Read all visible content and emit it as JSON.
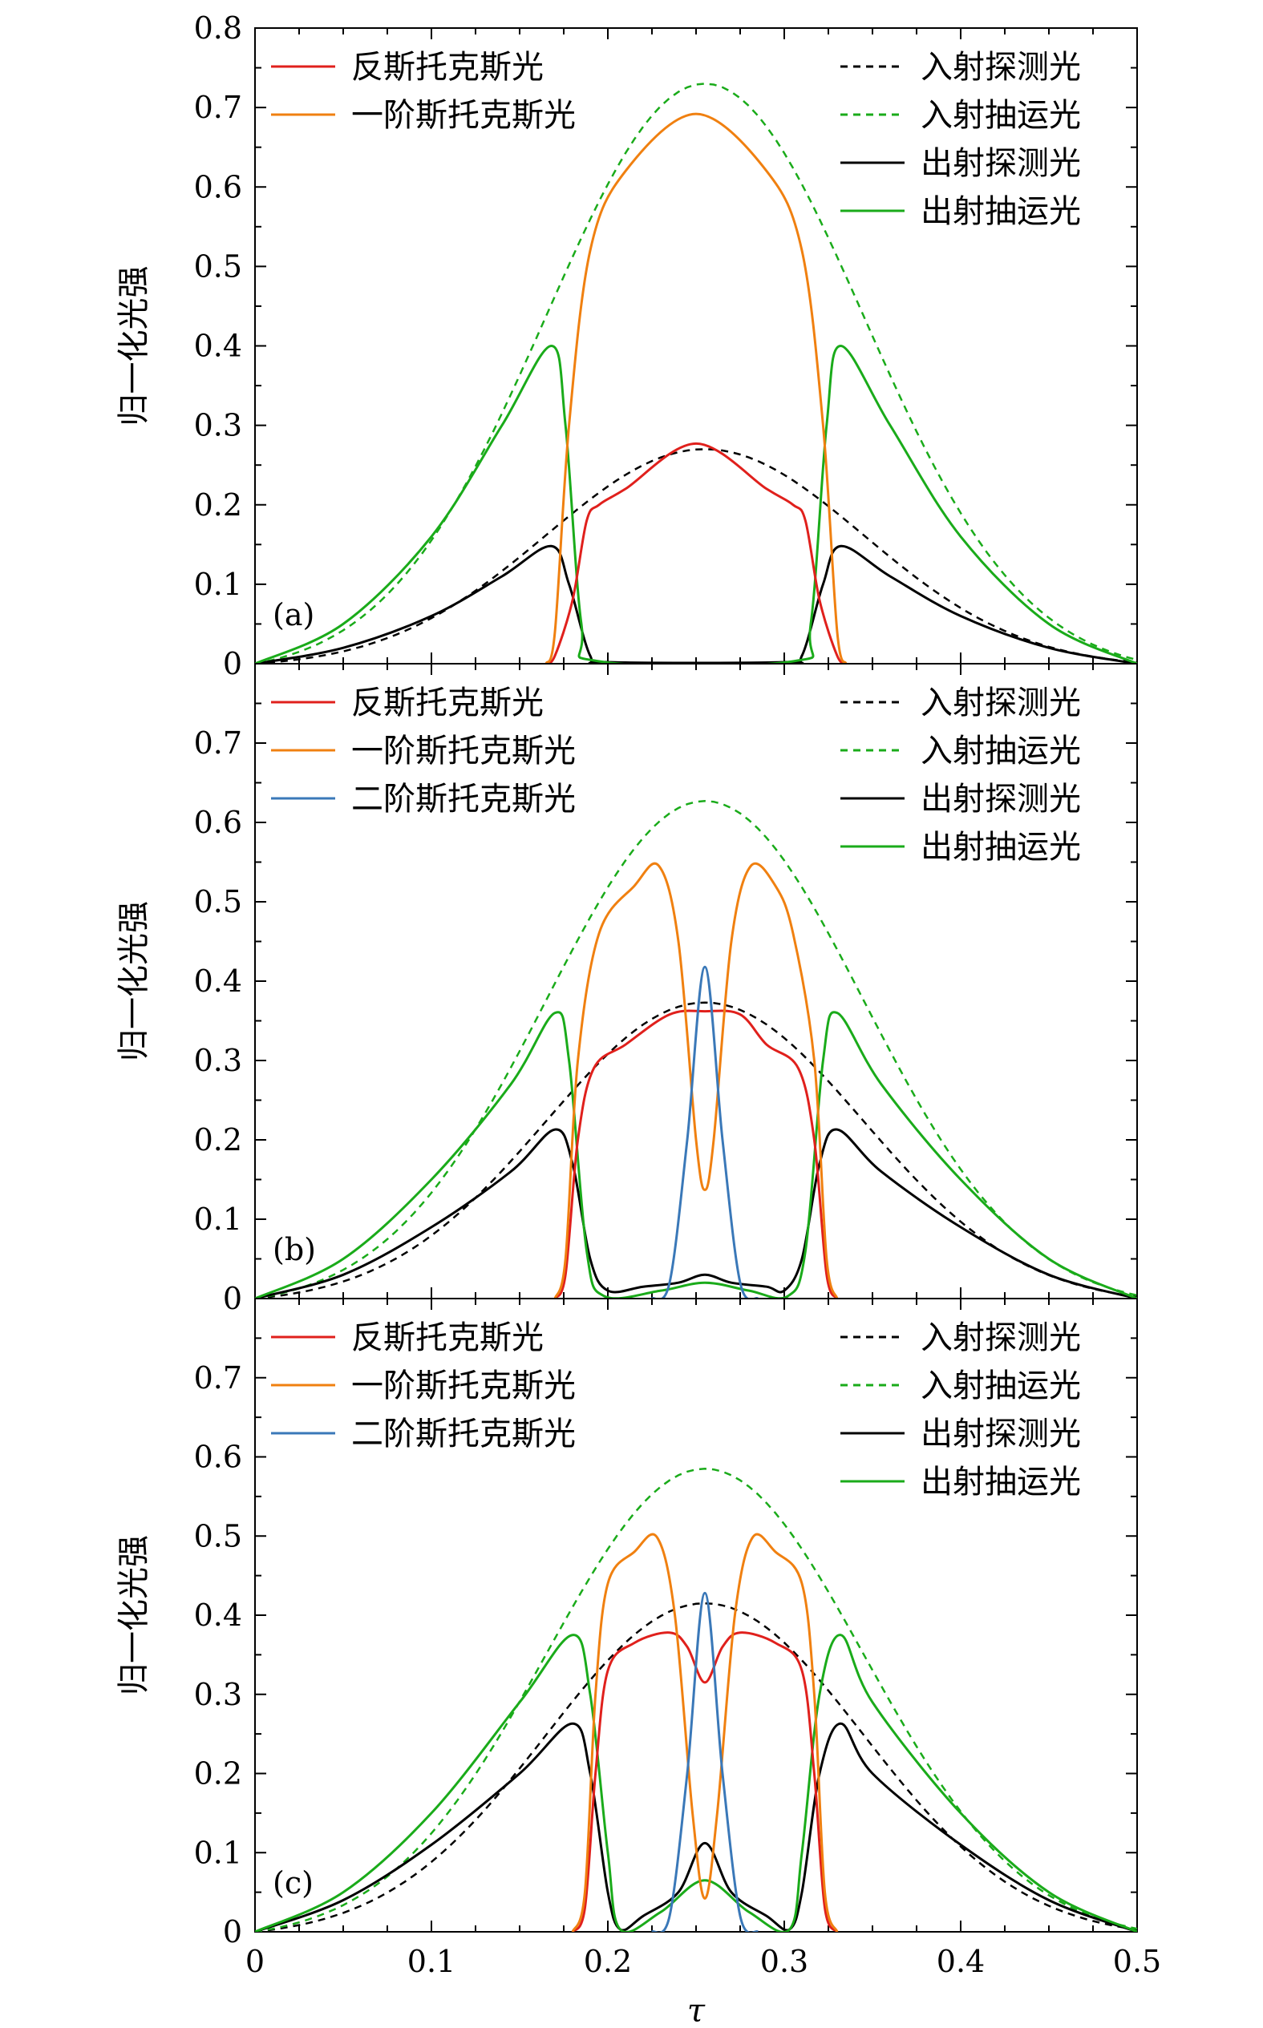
{
  "chart_data": [
    {
      "type": "line",
      "panel_label": "(a)",
      "xlabel": "τ",
      "ylabel": "归一化光强",
      "xlim": [
        0,
        0.5
      ],
      "ylim": [
        0,
        0.8
      ],
      "yticks": [
        "0",
        "0.1",
        "0.2",
        "0.3",
        "0.4",
        "0.5",
        "0.6",
        "0.7",
        "0.8"
      ],
      "xticks": [],
      "legend_left": [
        "反斯托克斯光",
        "一阶斯托克斯光"
      ],
      "legend_right": [
        "入射探测光",
        "入射抽运光",
        "出射探测光",
        "出射抽运光"
      ],
      "series": [
        {
          "name": "入射探测光",
          "color": "#000000",
          "dash": true,
          "peak": 0.27
        },
        {
          "name": "入射抽运光",
          "color": "#1aab1a",
          "dash": true,
          "peak": 0.73
        },
        {
          "name": "出射探测光",
          "color": "#000000",
          "dash": false,
          "points": [
            [
              0,
              0
            ],
            [
              0.05,
              0.02
            ],
            [
              0.1,
              0.06
            ],
            [
              0.14,
              0.11
            ],
            [
              0.168,
              0.148
            ],
            [
              0.178,
              0.1
            ],
            [
              0.19,
              0.01
            ],
            [
              0.2,
              0.002
            ],
            [
              0.3,
              0.002
            ],
            [
              0.31,
              0.01
            ],
            [
              0.322,
              0.1
            ],
            [
              0.332,
              0.148
            ],
            [
              0.36,
              0.11
            ],
            [
              0.4,
              0.06
            ],
            [
              0.45,
              0.02
            ],
            [
              0.5,
              0
            ]
          ]
        },
        {
          "name": "出射抽运光",
          "color": "#1aab1a",
          "dash": false,
          "points": [
            [
              0,
              0
            ],
            [
              0.05,
              0.05
            ],
            [
              0.1,
              0.16
            ],
            [
              0.14,
              0.3
            ],
            [
              0.168,
              0.4
            ],
            [
              0.176,
              0.3
            ],
            [
              0.185,
              0.05
            ],
            [
              0.195,
              0.003
            ],
            [
              0.305,
              0.003
            ],
            [
              0.315,
              0.05
            ],
            [
              0.324,
              0.3
            ],
            [
              0.332,
              0.4
            ],
            [
              0.36,
              0.3
            ],
            [
              0.4,
              0.16
            ],
            [
              0.45,
              0.05
            ],
            [
              0.5,
              0
            ]
          ]
        },
        {
          "name": "反斯托克斯光",
          "color": "#e0201c",
          "dash": false,
          "points": [
            [
              0.165,
              0
            ],
            [
              0.17,
              0.01
            ],
            [
              0.18,
              0.08
            ],
            [
              0.188,
              0.18
            ],
            [
              0.195,
              0.2
            ],
            [
              0.21,
              0.22
            ],
            [
              0.25,
              0.277
            ],
            [
              0.29,
              0.22
            ],
            [
              0.305,
              0.2
            ],
            [
              0.312,
              0.18
            ],
            [
              0.32,
              0.08
            ],
            [
              0.33,
              0.01
            ],
            [
              0.335,
              0
            ]
          ]
        },
        {
          "name": "一阶斯托克斯光",
          "color": "#f08010",
          "dash": false,
          "points": [
            [
              0.165,
              0
            ],
            [
              0.17,
              0.04
            ],
            [
              0.178,
              0.3
            ],
            [
              0.19,
              0.52
            ],
            [
              0.21,
              0.62
            ],
            [
              0.25,
              0.692
            ],
            [
              0.29,
              0.62
            ],
            [
              0.31,
              0.52
            ],
            [
              0.322,
              0.3
            ],
            [
              0.33,
              0.04
            ],
            [
              0.335,
              0
            ]
          ]
        }
      ]
    },
    {
      "type": "line",
      "panel_label": "(b)",
      "xlabel": "τ",
      "ylabel": "归一化光强",
      "xlim": [
        0,
        0.5
      ],
      "ylim": [
        0,
        0.8
      ],
      "yticks": [
        "0",
        "0.1",
        "0.2",
        "0.3",
        "0.4",
        "0.5",
        "0.6",
        "0.7"
      ],
      "xticks": [],
      "legend_left": [
        "反斯托克斯光",
        "一阶斯托克斯光",
        "二阶斯托克斯光"
      ],
      "legend_right": [
        "入射探测光",
        "入射抽运光",
        "出射探测光",
        "出射抽运光"
      ],
      "series": [
        {
          "name": "入射探测光",
          "color": "#000000",
          "dash": true,
          "peak": 0.373
        },
        {
          "name": "入射抽运光",
          "color": "#1aab1a",
          "dash": true,
          "peak": 0.627
        },
        {
          "name": "出射探测光",
          "color": "#000000",
          "dash": false,
          "points": [
            [
              0,
              0
            ],
            [
              0.05,
              0.03
            ],
            [
              0.1,
              0.09
            ],
            [
              0.145,
              0.16
            ],
            [
              0.17,
              0.213
            ],
            [
              0.18,
              0.17
            ],
            [
              0.19,
              0.05
            ],
            [
              0.2,
              0.01
            ],
            [
              0.22,
              0.015
            ],
            [
              0.24,
              0.02
            ],
            [
              0.255,
              0.03
            ],
            [
              0.27,
              0.02
            ],
            [
              0.29,
              0.015
            ],
            [
              0.3,
              0.01
            ],
            [
              0.31,
              0.05
            ],
            [
              0.32,
              0.17
            ],
            [
              0.33,
              0.213
            ],
            [
              0.355,
              0.16
            ],
            [
              0.4,
              0.09
            ],
            [
              0.45,
              0.03
            ],
            [
              0.5,
              0
            ]
          ]
        },
        {
          "name": "出射抽运光",
          "color": "#1aab1a",
          "dash": false,
          "points": [
            [
              0,
              0
            ],
            [
              0.05,
              0.05
            ],
            [
              0.1,
              0.15
            ],
            [
              0.145,
              0.27
            ],
            [
              0.17,
              0.36
            ],
            [
              0.178,
              0.3
            ],
            [
              0.188,
              0.06
            ],
            [
              0.198,
              0.003
            ],
            [
              0.23,
              0.01
            ],
            [
              0.255,
              0.02
            ],
            [
              0.28,
              0.01
            ],
            [
              0.302,
              0.003
            ],
            [
              0.312,
              0.06
            ],
            [
              0.322,
              0.3
            ],
            [
              0.33,
              0.36
            ],
            [
              0.355,
              0.27
            ],
            [
              0.4,
              0.15
            ],
            [
              0.45,
              0.05
            ],
            [
              0.5,
              0
            ]
          ]
        },
        {
          "name": "反斯托克斯光",
          "color": "#e0201c",
          "dash": false,
          "points": [
            [
              0.17,
              0
            ],
            [
              0.176,
              0.03
            ],
            [
              0.183,
              0.2
            ],
            [
              0.192,
              0.29
            ],
            [
              0.21,
              0.32
            ],
            [
              0.235,
              0.358
            ],
            [
              0.255,
              0.362
            ],
            [
              0.275,
              0.358
            ],
            [
              0.29,
              0.32
            ],
            [
              0.308,
              0.29
            ],
            [
              0.317,
              0.2
            ],
            [
              0.324,
              0.03
            ],
            [
              0.33,
              0
            ]
          ]
        },
        {
          "name": "一阶斯托克斯光",
          "color": "#f08010",
          "dash": false,
          "points": [
            [
              0.17,
              0
            ],
            [
              0.176,
              0.05
            ],
            [
              0.183,
              0.3
            ],
            [
              0.195,
              0.46
            ],
            [
              0.215,
              0.52
            ],
            [
              0.229,
              0.545
            ],
            [
              0.24,
              0.45
            ],
            [
              0.25,
              0.2
            ],
            [
              0.255,
              0.137
            ],
            [
              0.26,
              0.2
            ],
            [
              0.27,
              0.45
            ],
            [
              0.281,
              0.545
            ],
            [
              0.295,
              0.52
            ],
            [
              0.305,
              0.46
            ],
            [
              0.317,
              0.3
            ],
            [
              0.324,
              0.05
            ],
            [
              0.33,
              0
            ]
          ]
        },
        {
          "name": "二阶斯托克斯光",
          "color": "#3a78b8",
          "dash": false,
          "points": [
            [
              0.225,
              0
            ],
            [
              0.235,
              0.02
            ],
            [
              0.245,
              0.2
            ],
            [
              0.255,
              0.418
            ],
            [
              0.265,
              0.2
            ],
            [
              0.275,
              0.02
            ],
            [
              0.285,
              0
            ]
          ]
        }
      ]
    },
    {
      "type": "line",
      "panel_label": "(c)",
      "xlabel": "τ",
      "ylabel": "归一化光强",
      "xlim": [
        0,
        0.5
      ],
      "ylim": [
        0,
        0.8
      ],
      "yticks": [
        "0",
        "0.1",
        "0.2",
        "0.3",
        "0.4",
        "0.5",
        "0.6",
        "0.7"
      ],
      "xticks": [
        "0",
        "0.1",
        "0.2",
        "0.3",
        "0.4",
        "0.5"
      ],
      "legend_left": [
        "反斯托克斯光",
        "一阶斯托克斯光",
        "二阶斯托克斯光"
      ],
      "legend_right": [
        "入射探测光",
        "入射抽运光",
        "出射探测光",
        "出射抽运光"
      ],
      "series": [
        {
          "name": "入射探测光",
          "color": "#000000",
          "dash": true,
          "peak": 0.415
        },
        {
          "name": "入射抽运光",
          "color": "#1aab1a",
          "dash": true,
          "peak": 0.585
        },
        {
          "name": "出射探测光",
          "color": "#000000",
          "dash": false,
          "points": [
            [
              0,
              0
            ],
            [
              0.05,
              0.04
            ],
            [
              0.1,
              0.11
            ],
            [
              0.15,
              0.2
            ],
            [
              0.18,
              0.263
            ],
            [
              0.19,
              0.2
            ],
            [
              0.2,
              0.05
            ],
            [
              0.207,
              0.003
            ],
            [
              0.22,
              0.02
            ],
            [
              0.24,
              0.05
            ],
            [
              0.255,
              0.112
            ],
            [
              0.27,
              0.05
            ],
            [
              0.29,
              0.02
            ],
            [
              0.303,
              0.003
            ],
            [
              0.31,
              0.05
            ],
            [
              0.32,
              0.2
            ],
            [
              0.332,
              0.263
            ],
            [
              0.35,
              0.2
            ],
            [
              0.4,
              0.11
            ],
            [
              0.45,
              0.04
            ],
            [
              0.5,
              0
            ]
          ]
        },
        {
          "name": "出射抽运光",
          "color": "#1aab1a",
          "dash": false,
          "points": [
            [
              0,
              0
            ],
            [
              0.05,
              0.05
            ],
            [
              0.1,
              0.15
            ],
            [
              0.15,
              0.29
            ],
            [
              0.18,
              0.375
            ],
            [
              0.19,
              0.3
            ],
            [
              0.2,
              0.1
            ],
            [
              0.207,
              0.003
            ],
            [
              0.23,
              0.025
            ],
            [
              0.255,
              0.065
            ],
            [
              0.28,
              0.025
            ],
            [
              0.303,
              0.003
            ],
            [
              0.31,
              0.1
            ],
            [
              0.32,
              0.3
            ],
            [
              0.332,
              0.375
            ],
            [
              0.35,
              0.29
            ],
            [
              0.4,
              0.15
            ],
            [
              0.45,
              0.05
            ],
            [
              0.5,
              0
            ]
          ]
        },
        {
          "name": "反斯托克斯光",
          "color": "#e0201c",
          "dash": false,
          "points": [
            [
              0.18,
              0
            ],
            [
              0.187,
              0.03
            ],
            [
              0.193,
              0.2
            ],
            [
              0.2,
              0.33
            ],
            [
              0.215,
              0.365
            ],
            [
              0.235,
              0.378
            ],
            [
              0.245,
              0.36
            ],
            [
              0.255,
              0.315
            ],
            [
              0.265,
              0.36
            ],
            [
              0.275,
              0.378
            ],
            [
              0.295,
              0.365
            ],
            [
              0.31,
              0.33
            ],
            [
              0.317,
              0.2
            ],
            [
              0.323,
              0.03
            ],
            [
              0.33,
              0
            ]
          ]
        },
        {
          "name": "一阶斯托克斯光",
          "color": "#f08010",
          "dash": false,
          "points": [
            [
              0.18,
              0
            ],
            [
              0.187,
              0.05
            ],
            [
              0.193,
              0.3
            ],
            [
              0.2,
              0.44
            ],
            [
              0.215,
              0.48
            ],
            [
              0.228,
              0.498
            ],
            [
              0.238,
              0.4
            ],
            [
              0.248,
              0.15
            ],
            [
              0.255,
              0.042
            ],
            [
              0.262,
              0.15
            ],
            [
              0.272,
              0.4
            ],
            [
              0.282,
              0.498
            ],
            [
              0.295,
              0.48
            ],
            [
              0.31,
              0.44
            ],
            [
              0.317,
              0.3
            ],
            [
              0.323,
              0.05
            ],
            [
              0.33,
              0
            ]
          ]
        },
        {
          "name": "二阶斯托克斯光",
          "color": "#3a78b8",
          "dash": false,
          "points": [
            [
              0.225,
              0
            ],
            [
              0.235,
              0.02
            ],
            [
              0.245,
              0.2
            ],
            [
              0.255,
              0.428
            ],
            [
              0.265,
              0.2
            ],
            [
              0.275,
              0.02
            ],
            [
              0.285,
              0
            ]
          ]
        }
      ]
    }
  ]
}
